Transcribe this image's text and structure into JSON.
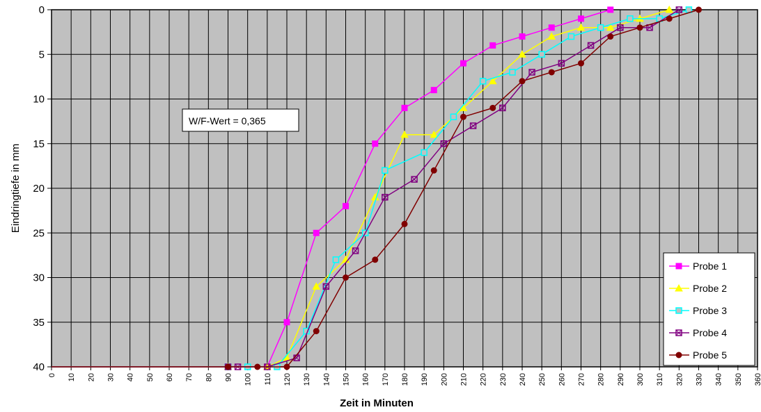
{
  "chart_data": {
    "type": "line",
    "xlabel": "Zeit in Minuten",
    "ylabel": "Eindringtiefe in mm",
    "xlim": [
      0,
      360
    ],
    "ylim": [
      0,
      40
    ],
    "y_inverted": true,
    "x_ticks": [
      0,
      10,
      20,
      30,
      40,
      50,
      60,
      70,
      80,
      90,
      100,
      110,
      120,
      130,
      140,
      150,
      160,
      170,
      180,
      190,
      200,
      210,
      220,
      230,
      240,
      250,
      260,
      270,
      280,
      290,
      300,
      310,
      320,
      330,
      340,
      350,
      360
    ],
    "y_ticks": [
      0,
      5,
      10,
      15,
      20,
      25,
      30,
      35,
      40
    ],
    "grid": true,
    "legend_position": "bottom-right",
    "annotation": "W/F-Wert = 0,365",
    "series": [
      {
        "name": "Probe 1",
        "color": "#ff00ff",
        "marker": "square",
        "points": [
          [
            0,
            40
          ],
          [
            90,
            40
          ],
          [
            110,
            40
          ],
          [
            120,
            35
          ],
          [
            135,
            25
          ],
          [
            150,
            22
          ],
          [
            165,
            15
          ],
          [
            180,
            11
          ],
          [
            195,
            9
          ],
          [
            210,
            6
          ],
          [
            225,
            4
          ],
          [
            240,
            3
          ],
          [
            255,
            2
          ],
          [
            270,
            1
          ],
          [
            285,
            0
          ]
        ]
      },
      {
        "name": "Probe 2",
        "color": "#ffff00",
        "marker": "triangle",
        "points": [
          [
            0,
            40
          ],
          [
            90,
            40
          ],
          [
            110,
            40
          ],
          [
            120,
            39
          ],
          [
            135,
            31
          ],
          [
            150,
            28
          ],
          [
            165,
            21
          ],
          [
            180,
            14
          ],
          [
            195,
            14
          ],
          [
            210,
            11
          ],
          [
            225,
            8
          ],
          [
            240,
            5
          ],
          [
            255,
            3
          ],
          [
            270,
            2
          ],
          [
            285,
            2
          ],
          [
            300,
            1
          ],
          [
            315,
            0
          ]
        ]
      },
      {
        "name": "Probe 3",
        "color": "#00ffff",
        "marker": "square-open",
        "points": [
          [
            0,
            40
          ],
          [
            90,
            40
          ],
          [
            100,
            40
          ],
          [
            115,
            40
          ],
          [
            130,
            36
          ],
          [
            145,
            28
          ],
          [
            160,
            25
          ],
          [
            170,
            18
          ],
          [
            190,
            16
          ],
          [
            205,
            12
          ],
          [
            220,
            8
          ],
          [
            235,
            7
          ],
          [
            250,
            5
          ],
          [
            265,
            3
          ],
          [
            280,
            2
          ],
          [
            295,
            1
          ],
          [
            310,
            1
          ],
          [
            325,
            0
          ]
        ]
      },
      {
        "name": "Probe 4",
        "color": "#800080",
        "marker": "square-x",
        "points": [
          [
            0,
            40
          ],
          [
            90,
            40
          ],
          [
            95,
            40
          ],
          [
            110,
            40
          ],
          [
            125,
            39
          ],
          [
            140,
            31
          ],
          [
            155,
            27
          ],
          [
            170,
            21
          ],
          [
            185,
            19
          ],
          [
            200,
            15
          ],
          [
            215,
            13
          ],
          [
            230,
            11
          ],
          [
            245,
            7
          ],
          [
            260,
            6
          ],
          [
            275,
            4
          ],
          [
            290,
            2
          ],
          [
            305,
            2
          ],
          [
            320,
            0
          ]
        ]
      },
      {
        "name": "Probe 5",
        "color": "#800000",
        "marker": "circle",
        "points": [
          [
            0,
            40
          ],
          [
            90,
            40
          ],
          [
            105,
            40
          ],
          [
            120,
            40
          ],
          [
            135,
            36
          ],
          [
            150,
            30
          ],
          [
            165,
            28
          ],
          [
            180,
            24
          ],
          [
            195,
            18
          ],
          [
            210,
            12
          ],
          [
            225,
            11
          ],
          [
            240,
            8
          ],
          [
            255,
            7
          ],
          [
            270,
            6
          ],
          [
            285,
            3
          ],
          [
            300,
            2
          ],
          [
            315,
            1
          ],
          [
            330,
            0
          ]
        ]
      }
    ]
  }
}
